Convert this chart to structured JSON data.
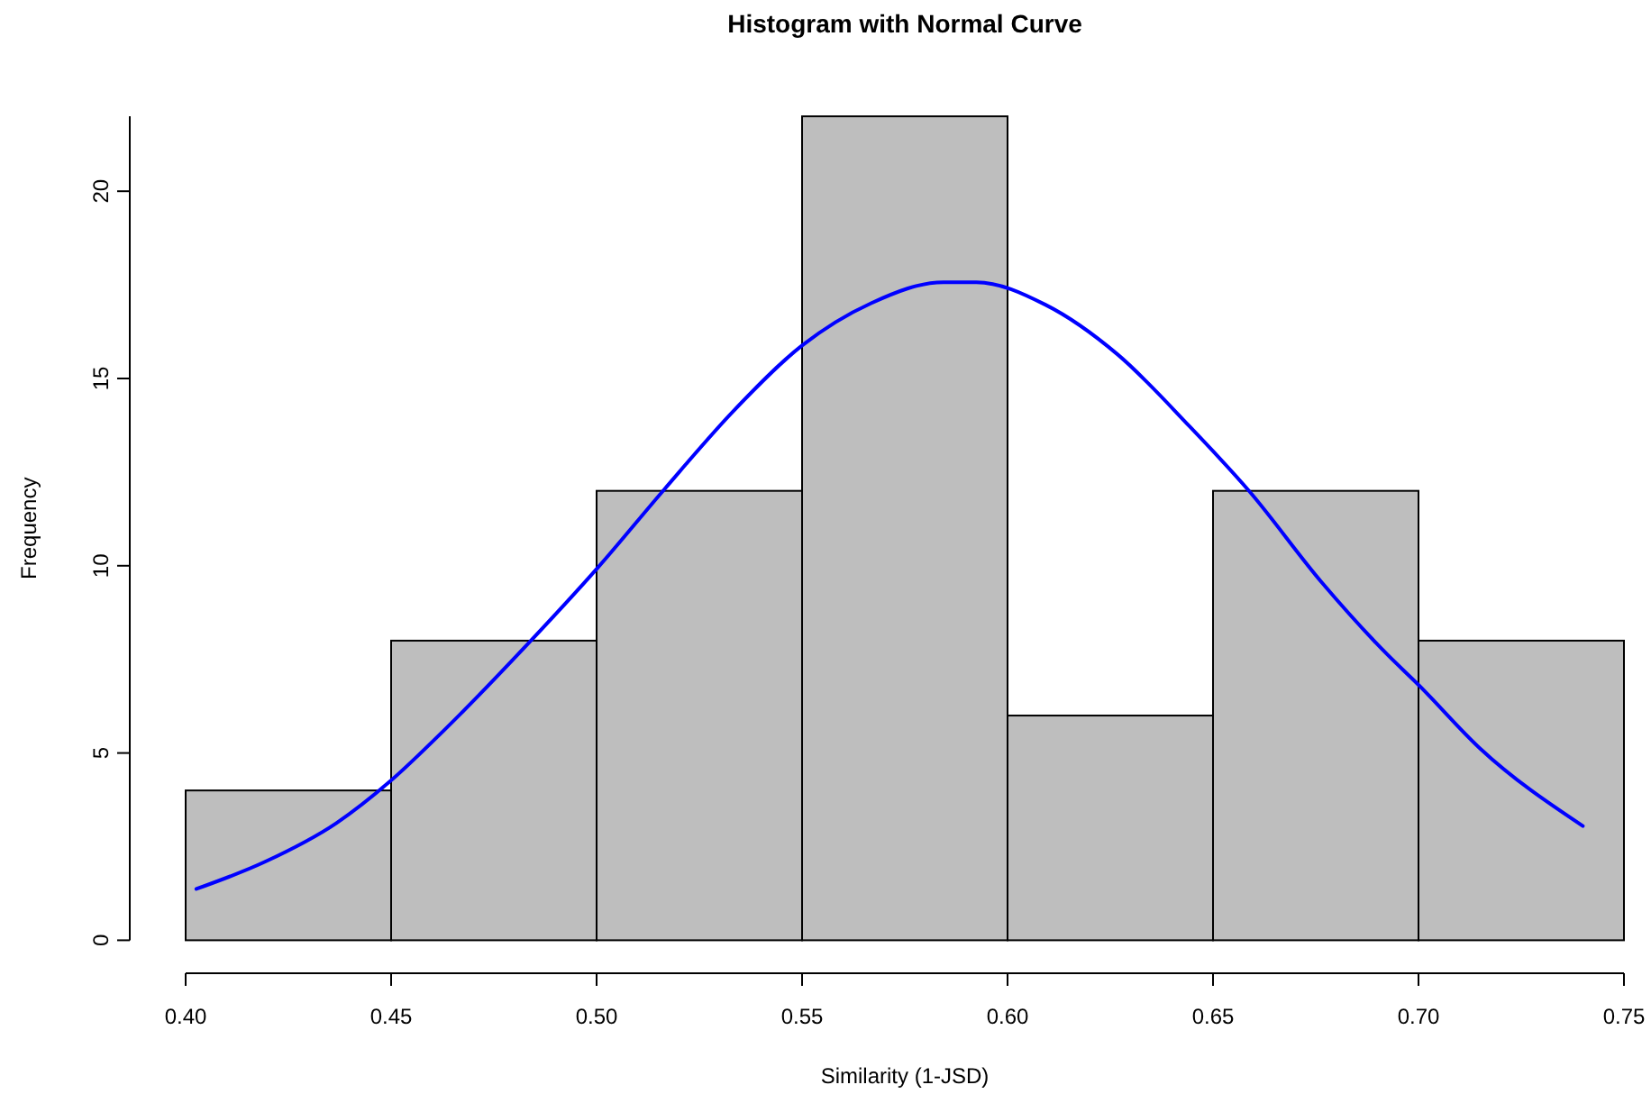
{
  "chart_data": {
    "type": "histogram",
    "title": "Histogram with Normal Curve",
    "xlabel": "Similarity (1-JSD)",
    "ylabel": "Frequency",
    "bins": [
      0.4,
      0.45,
      0.5,
      0.55,
      0.6,
      0.65,
      0.7,
      0.75
    ],
    "series": [
      {
        "color": "#bebebe",
        "values": [
          4,
          8,
          12,
          22,
          6,
          12,
          8
        ]
      },
      {
        "type": "line",
        "color": "#0000ff",
        "x": [
          0.4026,
          0.4192,
          0.4367,
          0.4498,
          0.463,
          0.4835,
          0.5003,
          0.5164,
          0.5332,
          0.55,
          0.5668,
          0.5844,
          0.5924,
          0.6092,
          0.6268,
          0.6443,
          0.6589,
          0.6765,
          0.6925,
          0.7,
          0.7149,
          0.74
        ],
        "values": [
          1.37,
          2.09,
          3.13,
          4.25,
          5.62,
          7.94,
          9.95,
          12.03,
          14.12,
          15.88,
          17.01,
          17.57,
          17.57,
          16.97,
          15.64,
          13.72,
          11.98,
          9.55,
          7.62,
          6.82,
          5.13,
          3.05
        ]
      }
    ],
    "xlim": [
      0.4,
      0.75
    ],
    "xticks": [
      {
        "value": 0.4,
        "label": "0.40"
      },
      {
        "value": 0.45,
        "label": "0.45"
      },
      {
        "value": 0.5,
        "label": "0.50"
      },
      {
        "value": 0.55,
        "label": "0.55"
      },
      {
        "value": 0.6,
        "label": "0.60"
      },
      {
        "value": 0.65,
        "label": "0.65"
      },
      {
        "value": 0.7,
        "label": "0.70"
      },
      {
        "value": 0.75,
        "label": "0.75"
      }
    ],
    "ylim": [
      0,
      22
    ],
    "yticks": [
      0,
      5,
      10,
      15,
      20
    ],
    "grid": false
  }
}
